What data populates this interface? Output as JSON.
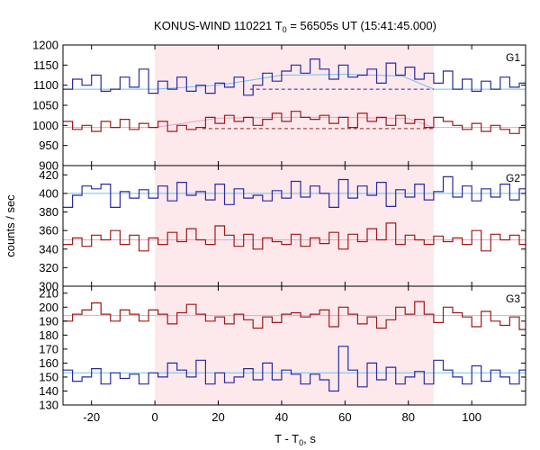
{
  "chart_data": {
    "type": "line",
    "title_parts": {
      "pre": "KONUS-WIND 110221 T",
      "sub": "0",
      "post": " = 56505s UT (15:41:45.000)"
    },
    "xlabel_parts": {
      "pre": "T - T",
      "sub": "0",
      "post": ", s"
    },
    "ylabel": "counts / sec",
    "xlim": [
      -29,
      117
    ],
    "x_ticks": [
      -20,
      0,
      20,
      40,
      60,
      80,
      100
    ],
    "shaded_interval": [
      0,
      88
    ],
    "shade_color": "#fde8ec",
    "panels": [
      {
        "label": "G1",
        "ylim": [
          900,
          1200
        ],
        "y_ticks": [
          900,
          950,
          1000,
          1050,
          1100,
          1150,
          1200
        ],
        "series": [
          {
            "color": "#2a2a9e",
            "bin_start": -29,
            "bin_width": 3,
            "values": [
              1090,
              1115,
              1100,
              1125,
              1085,
              1090,
              1120,
              1095,
              1140,
              1080,
              1110,
              1090,
              1120,
              1085,
              1100,
              1080,
              1105,
              1095,
              1120,
              1075,
              1100,
              1130,
              1110,
              1135,
              1150,
              1130,
              1165,
              1140,
              1115,
              1150,
              1120,
              1125,
              1140,
              1105,
              1155,
              1125,
              1145,
              1115,
              1130,
              1105,
              1135,
              1090,
              1115,
              1085,
              1110,
              1090,
              1120,
              1095,
              1105,
              1085
            ]
          },
          {
            "color": "#a01818",
            "bin_start": -29,
            "bin_width": 3,
            "values": [
              1010,
              990,
              1000,
              985,
              1010,
              995,
              1015,
              990,
              1005,
              995,
              1010,
              985,
              1000,
              990,
              995,
              1020,
              1005,
              1025,
              1010,
              1020,
              1000,
              1015,
              1030,
              1010,
              1035,
              1020,
              1015,
              1025,
              1005,
              1020,
              995,
              1030,
              1010,
              1020,
              1000,
              1025,
              1005,
              1015,
              995,
              1020,
              1010,
              1000,
              990,
              1005,
              985,
              1000,
              990,
              980,
              995,
              1040
            ]
          }
        ],
        "fit_lines": [
          {
            "color": "#6ec3ea",
            "segments": [
              [
                -29,
                1090
              ],
              [
                0,
                1090
              ],
              [
                20,
                1100
              ],
              [
                30,
                1112
              ],
              [
                40,
                1125
              ],
              [
                60,
                1127
              ],
              [
                78,
                1123
              ],
              [
                88,
                1090
              ],
              [
                117,
                1090
              ]
            ]
          },
          {
            "color": "#e9a3c6",
            "segments": [
              [
                -29,
                995
              ],
              [
                0,
                995
              ],
              [
                20,
                1018
              ],
              [
                40,
                1020
              ],
              [
                60,
                1020
              ],
              [
                80,
                1017
              ],
              [
                88,
                995
              ],
              [
                117,
                995
              ]
            ]
          }
        ],
        "baseline_dashes": [
          {
            "color": "#2a2a9e",
            "y": 1090,
            "x_range": [
              30,
              88
            ]
          },
          {
            "color": "#a01818",
            "y": 992,
            "x_range": [
              15,
              88
            ]
          }
        ]
      },
      {
        "label": "G2",
        "ylim": [
          300,
          430
        ],
        "y_ticks": [
          300,
          320,
          340,
          360,
          380,
          400,
          420
        ],
        "series": [
          {
            "color": "#2a2a9e",
            "bin_start": -29,
            "bin_width": 3,
            "values": [
              385,
              398,
              408,
              405,
              410,
              385,
              402,
              395,
              404,
              395,
              408,
              392,
              412,
              398,
              402,
              393,
              410,
              388,
              405,
              395,
              398,
              392,
              403,
              395,
              413,
              396,
              408,
              400,
              385,
              415,
              395,
              408,
              398,
              412,
              386,
              404,
              396,
              410,
              393,
              402,
              418,
              396,
              408,
              392,
              405,
              396,
              410,
              393,
              405,
              385
            ]
          },
          {
            "color": "#a01818",
            "bin_start": -29,
            "bin_width": 3,
            "values": [
              345,
              352,
              343,
              355,
              350,
              360,
              345,
              355,
              338,
              352,
              345,
              358,
              348,
              362,
              350,
              345,
              365,
              355,
              343,
              356,
              340,
              352,
              348,
              345,
              356,
              343,
              352,
              346,
              358,
              340,
              356,
              348,
              362,
              350,
              368,
              345,
              355,
              350,
              345,
              354,
              348,
              352,
              345,
              360,
              338,
              356,
              350,
              355,
              345,
              352
            ]
          }
        ],
        "fit_lines": [
          {
            "color": "#6ec3ea",
            "segments": [
              [
                -29,
                400
              ],
              [
                117,
                400
              ]
            ]
          },
          {
            "color": "#e9a3c6",
            "segments": [
              [
                -29,
                350
              ],
              [
                117,
                350
              ]
            ]
          }
        ],
        "baseline_dashes": []
      },
      {
        "label": "G3",
        "ylim": [
          130,
          215
        ],
        "y_ticks": [
          130,
          140,
          150,
          160,
          170,
          180,
          190,
          200,
          210
        ],
        "series": [
          {
            "color": "#a01818",
            "bin_start": -29,
            "bin_width": 3,
            "values": [
              190,
              195,
              198,
              203,
              195,
              190,
              198,
              195,
              190,
              198,
              195,
              188,
              196,
              202,
              195,
              190,
              193,
              188,
              195,
              191,
              185,
              193,
              189,
              195,
              196,
              193,
              195,
              198,
              186,
              200,
              195,
              188,
              193,
              185,
              191,
              200,
              195,
              204,
              195,
              189,
              200,
              196,
              193,
              186,
              197,
              190,
              187,
              193,
              184,
              181
            ]
          },
          {
            "color": "#2a2a9e",
            "bin_start": -29,
            "bin_width": 3,
            "values": [
              155,
              147,
              150,
              156,
              145,
              153,
              149,
              152,
              145,
              153,
              150,
              160,
              155,
              150,
              162,
              145,
              153,
              146,
              150,
              156,
              148,
              160,
              148,
              155,
              152,
              145,
              152,
              148,
              140,
              172,
              155,
              143,
              160,
              148,
              157,
              145,
              150,
              154,
              145,
              162,
              155,
              150,
              145,
              158,
              147,
              155,
              150,
              145,
              155,
              152
            ]
          }
        ],
        "fit_lines": [
          {
            "color": "#e9a3c6",
            "segments": [
              [
                -29,
                194
              ],
              [
                117,
                194
              ]
            ]
          },
          {
            "color": "#6ec3ea",
            "segments": [
              [
                -29,
                153
              ],
              [
                117,
                153
              ]
            ]
          }
        ],
        "baseline_dashes": []
      }
    ]
  }
}
